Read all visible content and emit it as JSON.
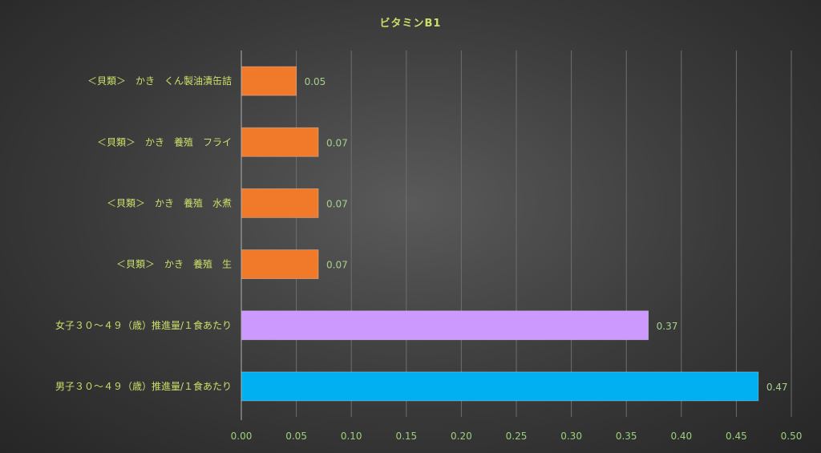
{
  "colors": {
    "text": "#c9e06a",
    "tick_text": "#9cd07a",
    "value_text": "#a8d08d",
    "gridline": "#6e6e6e",
    "axis": "#b0b0b0"
  },
  "chart_data": {
    "type": "bar",
    "orientation": "horizontal",
    "title": "ビタミンB1",
    "categories": [
      "＜貝類＞　かき　くん製油漬缶詰",
      "＜貝類＞　かき　養殖　フライ",
      "＜貝類＞　かき　養殖　水煮",
      "＜貝類＞　かき　養殖　生",
      "女子３０～４９（歳）推進量/１食あたり",
      "男子３０～４９（歳）推進量/１食あたり"
    ],
    "values": [
      0.05,
      0.07,
      0.07,
      0.07,
      0.37,
      0.47
    ],
    "value_labels": [
      "0.05",
      "0.07",
      "0.07",
      "0.07",
      "0.37",
      "0.47"
    ],
    "bar_colors": [
      "#f07a2a",
      "#f07a2a",
      "#f07a2a",
      "#f07a2a",
      "#cc99ff",
      "#00b0f0"
    ],
    "xlim": [
      0,
      0.5
    ],
    "xticks": [
      0,
      0.05,
      0.1,
      0.15,
      0.2,
      0.25,
      0.3,
      0.35,
      0.4,
      0.45,
      0.5
    ],
    "xtick_labels": [
      "0.00",
      "0.05",
      "0.10",
      "0.15",
      "0.20",
      "0.25",
      "0.30",
      "0.35",
      "0.40",
      "0.45",
      "0.50"
    ],
    "grid": true,
    "legend": "none"
  }
}
